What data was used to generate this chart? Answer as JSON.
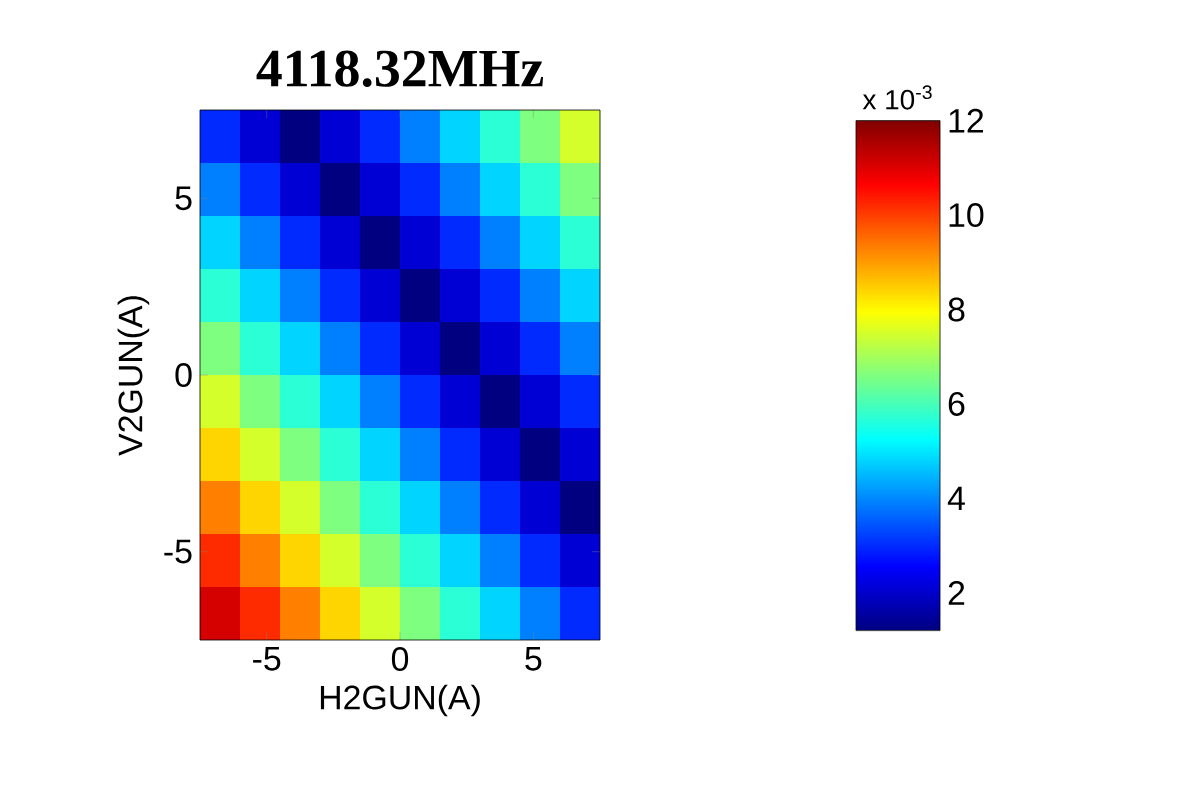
{
  "chart_data": {
    "type": "heatmap",
    "title": "4118.32MHz",
    "xlabel": "H2GUN(A)",
    "ylabel": "V2GUN(A)",
    "clabel": "x 10$^{-3}$",
    "x": [
      -6.75,
      -5.25,
      -3.75,
      -2.25,
      -0.75,
      0.75,
      2.25,
      3.75,
      5.25,
      6.75
    ],
    "y": [
      6.75,
      5.25,
      3.75,
      2.25,
      0.75,
      -0.75,
      -2.25,
      -3.75,
      -5.25,
      -6.75
    ],
    "xlim": [
      -7.5,
      7.5
    ],
    "ylim": [
      -7.5,
      7.5
    ],
    "xticks": [
      -5,
      0,
      5
    ],
    "yticks": [
      -5,
      0,
      5
    ],
    "clim": [
      1.2,
      12
    ],
    "cticks": [
      2,
      4,
      6,
      8,
      10,
      12
    ],
    "cells": [
      [
        3.0,
        2.1,
        1.2,
        2.1,
        3.0,
        3.9,
        4.8,
        5.7,
        6.6,
        7.5
      ],
      [
        3.9,
        3.0,
        2.1,
        1.2,
        2.1,
        3.0,
        3.9,
        4.8,
        5.7,
        6.6
      ],
      [
        4.8,
        3.9,
        3.0,
        2.1,
        1.2,
        2.1,
        3.0,
        3.9,
        4.8,
        5.7
      ],
      [
        5.7,
        4.8,
        3.9,
        3.0,
        2.1,
        1.2,
        2.1,
        3.0,
        3.9,
        4.8
      ],
      [
        6.6,
        5.7,
        4.8,
        3.9,
        3.0,
        2.1,
        1.2,
        2.1,
        3.0,
        3.9
      ],
      [
        7.5,
        6.6,
        5.7,
        4.8,
        3.9,
        3.0,
        2.1,
        1.2,
        2.1,
        3.0
      ],
      [
        8.4,
        7.5,
        6.6,
        5.7,
        4.8,
        3.9,
        3.0,
        2.1,
        1.2,
        2.1
      ],
      [
        9.3,
        8.4,
        7.5,
        6.6,
        5.7,
        4.8,
        3.9,
        3.0,
        2.1,
        1.2
      ],
      [
        10.2,
        9.3,
        8.4,
        7.5,
        6.6,
        5.7,
        4.8,
        3.9,
        3.0,
        2.1
      ],
      [
        11.1,
        10.2,
        9.3,
        8.4,
        7.5,
        6.6,
        5.7,
        4.8,
        3.9,
        3.0
      ]
    ]
  }
}
